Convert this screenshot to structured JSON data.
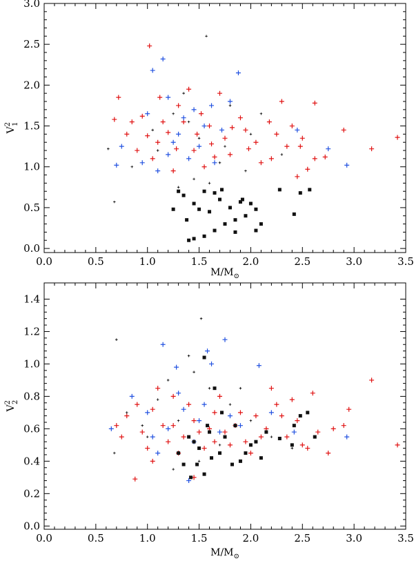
{
  "chart_data": [
    {
      "type": "scatter",
      "xlabel": "M/M",
      "xlabel_subscript": "⊙",
      "ylabel_base": "V",
      "ylabel_sup": "2",
      "ylabel_sub": "1",
      "xlim": [
        0.0,
        3.5
      ],
      "ylim": [
        -0.05,
        3.0
      ],
      "xticks": [
        "0.0",
        "0.5",
        "1.0",
        "1.5",
        "2.0",
        "2.5",
        "3.0",
        "3.5"
      ],
      "yticks": [
        "0.0",
        "0.5",
        "1.0",
        "1.5",
        "2.0",
        "2.5",
        "3.0"
      ],
      "series": [
        {
          "name": "red",
          "color": "#e01010",
          "marker": "plus",
          "points": [
            [
              0.95,
              1.62
            ],
            [
              1.02,
              2.48
            ],
            [
              1.1,
              1.3
            ],
            [
              1.2,
              1.42
            ],
            [
              0.72,
              1.85
            ],
            [
              0.85,
              1.55
            ],
            [
              1.3,
              1.75
            ],
            [
              1.45,
              1.2
            ],
            [
              1.6,
              1.5
            ],
            [
              1.75,
              1.35
            ],
            [
              1.9,
              1.6
            ],
            [
              2.05,
              1.3
            ],
            [
              2.2,
              1.1
            ],
            [
              2.35,
              1.25
            ],
            [
              2.4,
              1.5
            ],
            [
              2.5,
              1.35
            ],
            [
              2.62,
              1.78
            ],
            [
              2.72,
              1.12
            ],
            [
              2.9,
              1.45
            ],
            [
              3.17,
              1.22
            ],
            [
              3.42,
              1.36
            ],
            [
              2.45,
              0.88
            ],
            [
              2.55,
              0.97
            ],
            [
              2.1,
              1.05
            ],
            [
              1.25,
              0.95
            ],
            [
              1.05,
              1.1
            ],
            [
              0.8,
              1.4
            ],
            [
              0.68,
              1.58
            ],
            [
              1.35,
              1.55
            ],
            [
              1.52,
              1.65
            ],
            [
              1.65,
              1.12
            ],
            [
              1.82,
              1.48
            ],
            [
              1.98,
              1.22
            ],
            [
              2.3,
              1.8
            ],
            [
              2.18,
              1.55
            ],
            [
              1.12,
              1.85
            ],
            [
              1.4,
              1.95
            ],
            [
              0.9,
              1.2
            ],
            [
              1.7,
              1.9
            ],
            [
              1.55,
              1.0
            ],
            [
              2.62,
              1.1
            ],
            [
              2.48,
              1.25
            ],
            [
              1.0,
              1.38
            ],
            [
              1.15,
              1.55
            ],
            [
              1.28,
              1.22
            ],
            [
              1.48,
              1.4
            ],
            [
              1.62,
              1.28
            ],
            [
              1.8,
              1.15
            ],
            [
              1.95,
              1.45
            ],
            [
              2.25,
              1.4
            ]
          ]
        },
        {
          "name": "blue",
          "color": "#2050e0",
          "marker": "plus",
          "points": [
            [
              1.15,
              2.32
            ],
            [
              1.05,
              2.18
            ],
            [
              1.2,
              1.85
            ],
            [
              1.35,
              1.6
            ],
            [
              1.5,
              1.25
            ],
            [
              1.62,
              1.75
            ],
            [
              1.72,
              1.45
            ],
            [
              1.88,
              2.15
            ],
            [
              0.7,
              1.02
            ],
            [
              0.75,
              1.25
            ],
            [
              0.95,
              1.05
            ],
            [
              1.1,
              0.95
            ],
            [
              1.25,
              1.3
            ],
            [
              1.4,
              1.1
            ],
            [
              1.55,
              1.5
            ],
            [
              1.8,
              1.8
            ],
            [
              2.45,
              1.45
            ],
            [
              2.75,
              1.22
            ],
            [
              2.93,
              1.02
            ],
            [
              1.3,
              1.4
            ],
            [
              1.45,
              1.7
            ],
            [
              1.0,
              1.65
            ],
            [
              1.65,
              1.05
            ],
            [
              1.2,
              1.15
            ]
          ]
        },
        {
          "name": "black-plus",
          "color": "#000000",
          "marker": "smallplus",
          "points": [
            [
              1.57,
              2.6
            ],
            [
              1.35,
              1.9
            ],
            [
              0.62,
              1.22
            ],
            [
              0.68,
              0.57
            ],
            [
              1.8,
              1.75
            ],
            [
              1.25,
              1.65
            ],
            [
              1.5,
              1.35
            ],
            [
              1.7,
              1.05
            ],
            [
              2.0,
              1.4
            ],
            [
              1.1,
              1.2
            ],
            [
              0.85,
              1.0
            ],
            [
              1.45,
              0.85
            ],
            [
              1.6,
              0.8
            ],
            [
              1.95,
              0.95
            ],
            [
              2.3,
              1.15
            ],
            [
              1.3,
              0.75
            ],
            [
              1.05,
              1.45
            ],
            [
              1.4,
              1.55
            ],
            [
              1.75,
              1.25
            ],
            [
              2.1,
              1.65
            ]
          ]
        },
        {
          "name": "black-square",
          "color": "#111111",
          "marker": "square",
          "points": [
            [
              1.4,
              0.1
            ],
            [
              1.45,
              0.12
            ],
            [
              1.55,
              0.15
            ],
            [
              1.65,
              0.22
            ],
            [
              1.75,
              0.3
            ],
            [
              1.85,
              0.35
            ],
            [
              1.95,
              0.4
            ],
            [
              2.05,
              0.48
            ],
            [
              2.0,
              0.55
            ],
            [
              1.9,
              0.57
            ],
            [
              1.8,
              0.5
            ],
            [
              1.7,
              0.6
            ],
            [
              1.6,
              0.45
            ],
            [
              1.5,
              0.48
            ],
            [
              1.3,
              0.7
            ],
            [
              1.25,
              0.48
            ],
            [
              1.35,
              0.65
            ],
            [
              1.55,
              0.7
            ],
            [
              1.65,
              0.68
            ],
            [
              1.72,
              0.72
            ],
            [
              1.85,
              0.2
            ],
            [
              2.05,
              0.22
            ],
            [
              2.1,
              0.3
            ],
            [
              2.28,
              0.72
            ],
            [
              2.42,
              0.42
            ],
            [
              2.48,
              0.68
            ],
            [
              2.57,
              0.72
            ],
            [
              1.45,
              0.55
            ],
            [
              1.38,
              0.35
            ],
            [
              1.92,
              0.6
            ]
          ]
        }
      ]
    },
    {
      "type": "scatter",
      "xlabel": "M/M",
      "xlabel_subscript": "⊙",
      "ylabel_base": "V",
      "ylabel_sup": "2",
      "ylabel_sub": "2",
      "xlim": [
        0.0,
        3.5
      ],
      "ylim": [
        -0.02,
        1.5
      ],
      "xticks": [
        "0.0",
        "0.5",
        "1.0",
        "1.5",
        "2.0",
        "2.5",
        "3.0",
        "3.5"
      ],
      "yticks": [
        "0.0",
        "0.2",
        "0.4",
        "0.6",
        "0.8",
        "1.0",
        "1.2",
        "1.4"
      ],
      "series": [
        {
          "name": "red",
          "color": "#e01010",
          "marker": "plus",
          "points": [
            [
              0.88,
              0.29
            ],
            [
              0.95,
              0.58
            ],
            [
              1.05,
              0.72
            ],
            [
              1.15,
              0.62
            ],
            [
              1.25,
              0.8
            ],
            [
              1.35,
              0.55
            ],
            [
              1.45,
              0.65
            ],
            [
              1.55,
              0.48
            ],
            [
              1.65,
              0.7
            ],
            [
              1.75,
              0.58
            ],
            [
              1.85,
              0.62
            ],
            [
              1.95,
              0.52
            ],
            [
              2.05,
              0.68
            ],
            [
              2.15,
              0.6
            ],
            [
              2.25,
              0.75
            ],
            [
              2.35,
              0.55
            ],
            [
              2.45,
              0.65
            ],
            [
              2.55,
              0.48
            ],
            [
              2.65,
              0.58
            ],
            [
              2.75,
              0.45
            ],
            [
              2.9,
              0.62
            ],
            [
              3.17,
              0.9
            ],
            [
              3.42,
              0.5
            ],
            [
              2.95,
              0.72
            ],
            [
              0.75,
              0.55
            ],
            [
              0.7,
              0.62
            ],
            [
              1.0,
              0.48
            ],
            [
              1.2,
              0.52
            ],
            [
              1.4,
              0.75
            ],
            [
              1.6,
              0.6
            ],
            [
              1.8,
              0.5
            ],
            [
              2.0,
              0.45
            ],
            [
              2.2,
              0.85
            ],
            [
              2.4,
              0.78
            ],
            [
              2.6,
              0.82
            ],
            [
              1.1,
              0.85
            ],
            [
              1.3,
              0.45
            ],
            [
              1.5,
              0.58
            ],
            [
              1.7,
              0.8
            ],
            [
              1.9,
              0.7
            ],
            [
              0.8,
              0.68
            ],
            [
              2.1,
              0.55
            ],
            [
              1.05,
              0.4
            ],
            [
              1.45,
              0.3
            ],
            [
              2.3,
              0.68
            ],
            [
              2.5,
              0.5
            ],
            [
              1.25,
              0.62
            ],
            [
              0.9,
              0.75
            ],
            [
              1.65,
              0.52
            ],
            [
              2.8,
              0.6
            ]
          ]
        },
        {
          "name": "blue",
          "color": "#2050e0",
          "marker": "plus",
          "points": [
            [
              1.15,
              1.12
            ],
            [
              1.28,
              0.98
            ],
            [
              1.58,
              1.08
            ],
            [
              1.62,
              1.0
            ],
            [
              1.75,
              1.15
            ],
            [
              2.08,
              0.99
            ],
            [
              0.85,
              0.8
            ],
            [
              1.0,
              0.7
            ],
            [
              1.2,
              0.6
            ],
            [
              1.35,
              0.72
            ],
            [
              1.5,
              0.65
            ],
            [
              1.7,
              0.58
            ],
            [
              1.9,
              0.62
            ],
            [
              2.42,
              0.58
            ],
            [
              2.93,
              0.55
            ],
            [
              0.65,
              0.6
            ],
            [
              1.4,
              0.28
            ],
            [
              1.05,
              0.55
            ],
            [
              1.3,
              0.82
            ],
            [
              1.55,
              0.75
            ],
            [
              1.8,
              0.68
            ],
            [
              2.2,
              0.7
            ],
            [
              1.1,
              0.45
            ],
            [
              1.45,
              0.52
            ]
          ]
        },
        {
          "name": "black-plus",
          "color": "#000000",
          "marker": "smallplus",
          "points": [
            [
              0.7,
              1.15
            ],
            [
              1.52,
              1.28
            ],
            [
              0.68,
              0.45
            ],
            [
              1.4,
              1.05
            ],
            [
              1.2,
              0.9
            ],
            [
              1.6,
              0.85
            ],
            [
              1.8,
              0.75
            ],
            [
              2.0,
              0.65
            ],
            [
              1.0,
              0.55
            ],
            [
              1.3,
              0.65
            ],
            [
              1.5,
              0.4
            ],
            [
              1.7,
              0.5
            ],
            [
              2.2,
              0.55
            ],
            [
              0.8,
              0.7
            ],
            [
              1.1,
              0.78
            ],
            [
              1.9,
              0.85
            ],
            [
              1.25,
              0.35
            ],
            [
              1.45,
              0.95
            ],
            [
              2.4,
              0.48
            ],
            [
              0.95,
              0.62
            ]
          ]
        },
        {
          "name": "black-square",
          "color": "#111111",
          "marker": "square",
          "points": [
            [
              1.42,
              0.3
            ],
            [
              1.55,
              0.32
            ],
            [
              1.48,
              0.38
            ],
            [
              1.62,
              0.42
            ],
            [
              1.7,
              0.45
            ],
            [
              1.82,
              0.38
            ],
            [
              1.95,
              0.45
            ],
            [
              2.05,
              0.52
            ],
            [
              2.15,
              0.58
            ],
            [
              2.28,
              0.54
            ],
            [
              2.42,
              0.62
            ],
            [
              2.48,
              0.68
            ],
            [
              2.55,
              0.7
            ],
            [
              2.62,
              0.55
            ],
            [
              2.4,
              0.5
            ],
            [
              1.55,
              1.04
            ],
            [
              1.65,
              0.85
            ],
            [
              1.75,
              0.55
            ],
            [
              1.85,
              0.62
            ],
            [
              1.4,
              0.55
            ],
            [
              1.6,
              0.58
            ],
            [
              1.5,
              0.48
            ],
            [
              1.3,
              0.45
            ],
            [
              1.9,
              0.4
            ],
            [
              2.0,
              0.5
            ],
            [
              1.72,
              0.7
            ],
            [
              1.58,
              0.62
            ],
            [
              2.1,
              0.42
            ],
            [
              1.35,
              0.38
            ],
            [
              1.45,
              0.52
            ]
          ]
        }
      ]
    }
  ]
}
